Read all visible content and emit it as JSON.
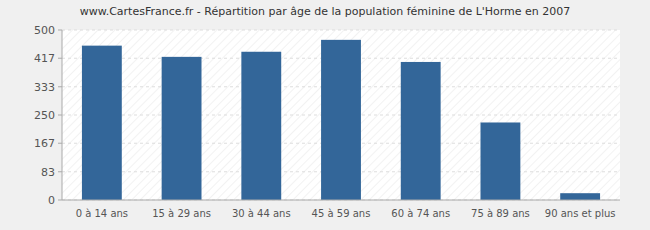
{
  "chart_data": {
    "type": "bar",
    "title": "www.CartesFrance.fr - Répartition par âge de la population féminine de L'Horme en 2007",
    "categories": [
      "0 à 14 ans",
      "15 à 29 ans",
      "30 à 44 ans",
      "45 à 59 ans",
      "60 à 74 ans",
      "75 à 89 ans",
      "90 ans et plus"
    ],
    "values": [
      454,
      421,
      436,
      471,
      406,
      228,
      20
    ],
    "color": "#336699",
    "ylim": [
      0,
      500
    ],
    "yticks": [
      0,
      83,
      167,
      250,
      333,
      417,
      500
    ],
    "grid": true
  }
}
